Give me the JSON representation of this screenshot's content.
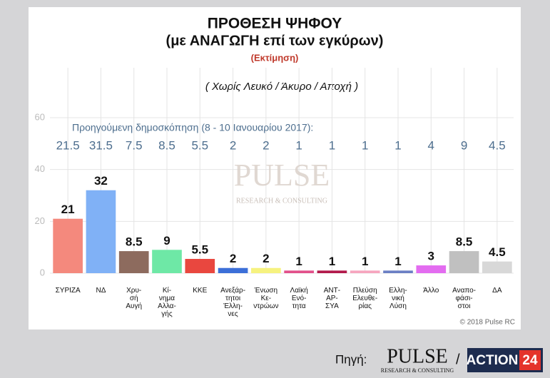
{
  "chart_data": {
    "type": "bar",
    "title": "ΠΡΟΘΕΣΗ ΨΗΦΟΥ",
    "subtitle": "(με ΑΝΑΓΩΓΗ επί των εγκύρων)",
    "estimate_note": "(Εκτίμηση)",
    "scope_note": "( Χωρίς Λευκό / Άκυρο / Αποχή )",
    "categories": [
      "ΣΥΡΙΖΑ",
      "ΝΔ",
      "Χρυ-\nσή\nΑυγή",
      "Κί-\nνημα\nΑλλα-\nγής",
      "ΚΚΕ",
      "Ανεξάρ-\nτητοι\nΈλλη-\nνες",
      "Ένωση\nΚε-\nντρώων",
      "Λαϊκή\nΕνό-\nτητα",
      "ΑΝΤ-\nΑΡ-\nΣΥΑ",
      "Πλεύση\nΕλευθε-\nρίας",
      "Ελλη-\nνική\nΛύση",
      "Άλλο",
      "Αναπο-\nφάσι-\nστοι",
      "ΔΑ"
    ],
    "values": [
      21,
      32,
      8.5,
      9,
      5.5,
      2,
      2,
      1,
      1,
      1,
      1,
      3,
      8.5,
      4.5
    ],
    "colors": [
      "#f4897d",
      "#80b1f6",
      "#8d6b5e",
      "#6ee8a6",
      "#e9473f",
      "#3c6fd8",
      "#f6f27f",
      "#e2508a",
      "#b2194b",
      "#f6a5be",
      "#6b7fc4",
      "#e36cf0",
      "#c0c0c0",
      "#d8d8d8"
    ],
    "previous": {
      "label": "Προηγούμενη δημοσκόπηση (8 - 10 Ιανουαρίου 2017):",
      "values": [
        21.5,
        31.5,
        7.5,
        8.5,
        5.5,
        2,
        2,
        1,
        1,
        1,
        1,
        4,
        9,
        4.5
      ]
    },
    "ylim": [
      0,
      60
    ],
    "yticks": [
      0,
      20,
      40,
      60
    ],
    "grid": true,
    "watermark": "PULSE",
    "watermark_sub": "RESEARCH & CONSULTING",
    "copyright": "© 2018 Pulse RC"
  },
  "footer": {
    "source_label": "Πηγή:",
    "logo_pulse": "PULSE",
    "logo_pulse_sub": "RESEARCH & CONSULTING",
    "separator": "/",
    "logo_action": "ACTION",
    "logo_24": "24"
  }
}
